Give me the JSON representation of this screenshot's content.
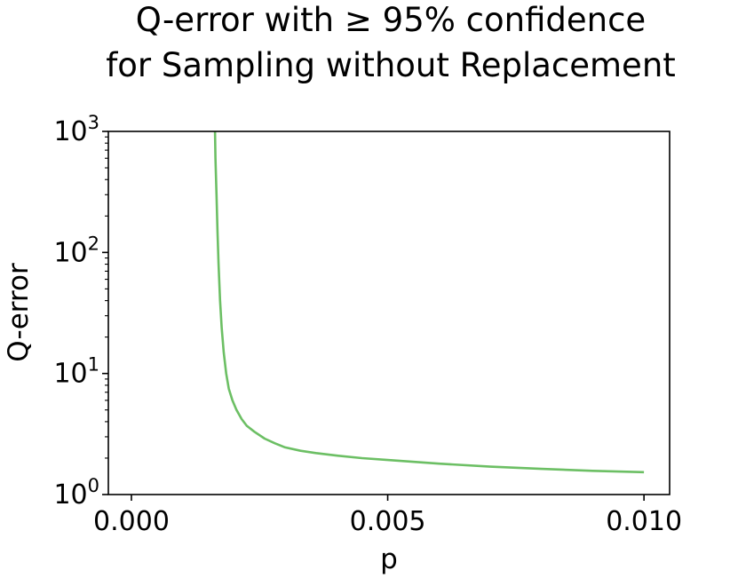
{
  "chart_data": {
    "type": "line",
    "title": [
      "Q-error with ≥ 95% confidence",
      "for Sampling without Replacement"
    ],
    "xlabel": "p",
    "ylabel": "Q-error",
    "xlim": [
      -0.00045,
      0.0105
    ],
    "ylim": [
      1,
      1000
    ],
    "yscale": "log",
    "grid": false,
    "x_ticks": [
      {
        "value": 0.0,
        "label": "0.000"
      },
      {
        "value": 0.005,
        "label": "0.005"
      },
      {
        "value": 0.01,
        "label": "0.010"
      }
    ],
    "y_ticks": [
      {
        "value": 1,
        "base": "10",
        "exp": "0"
      },
      {
        "value": 10,
        "base": "10",
        "exp": "1"
      },
      {
        "value": 100,
        "base": "10",
        "exp": "2"
      },
      {
        "value": 1000,
        "base": "10",
        "exp": "3"
      }
    ],
    "series": [
      {
        "color": "#6cbf64",
        "x": [
          0.00163,
          0.00164,
          0.00166,
          0.00168,
          0.0017,
          0.00173,
          0.00176,
          0.0018,
          0.00185,
          0.0019,
          0.00197,
          0.00205,
          0.00215,
          0.00225,
          0.0024,
          0.0026,
          0.0028,
          0.003,
          0.0033,
          0.0036,
          0.004,
          0.0045,
          0.005,
          0.006,
          0.007,
          0.008,
          0.009,
          0.01
        ],
        "y": [
          1000,
          600,
          300,
          150,
          80,
          40,
          24,
          15,
          10,
          7.5,
          6,
          5,
          4.2,
          3.7,
          3.3,
          2.9,
          2.65,
          2.45,
          2.3,
          2.2,
          2.1,
          2.0,
          1.93,
          1.8,
          1.7,
          1.63,
          1.57,
          1.53
        ]
      }
    ]
  }
}
